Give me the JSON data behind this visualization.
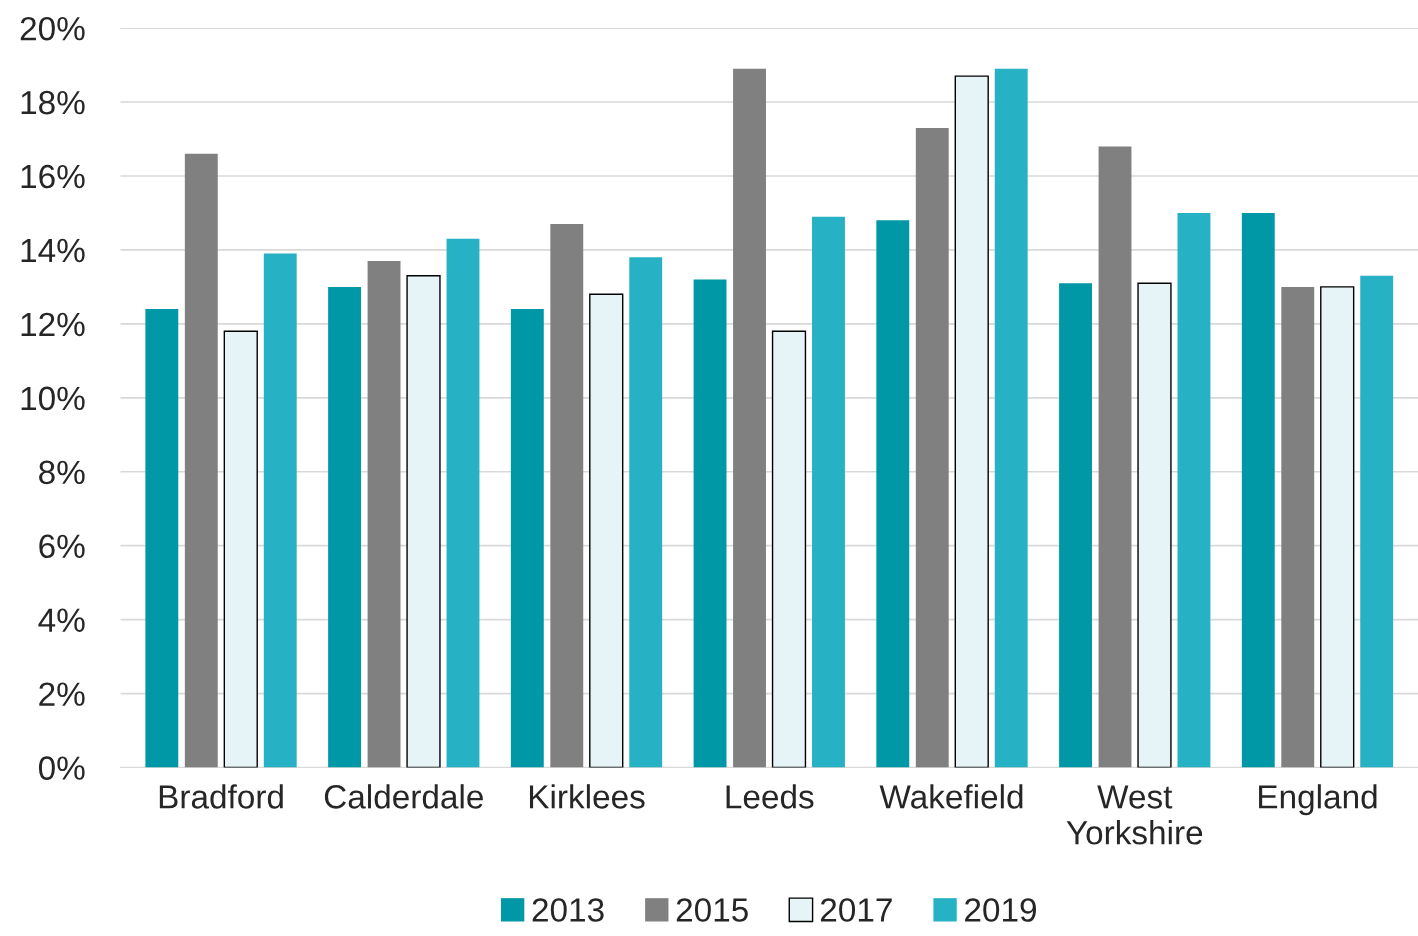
{
  "chart_data": {
    "type": "bar",
    "categories": [
      "Bradford",
      "Calderdale",
      "Kirklees",
      "Leeds",
      "Wakefield",
      "West\nYorkshire",
      "England"
    ],
    "series": [
      {
        "name": "2013",
        "color": "#0097a7",
        "values": [
          12.4,
          13.0,
          12.4,
          13.2,
          14.8,
          13.1,
          15.0
        ]
      },
      {
        "name": "2015",
        "color": "#808080",
        "values": [
          16.6,
          13.7,
          14.7,
          18.9,
          17.3,
          16.8,
          13.0
        ]
      },
      {
        "name": "2017",
        "color": "#e6f4f8",
        "values": [
          11.8,
          13.3,
          12.8,
          11.8,
          18.7,
          13.1,
          13.0
        ]
      },
      {
        "name": "2019",
        "color": "#26b1c4",
        "values": [
          13.9,
          14.3,
          13.8,
          14.9,
          18.9,
          15.0,
          13.3
        ]
      }
    ],
    "ylim": [
      0,
      20
    ],
    "yticks": [
      {
        "value": 0,
        "label": "0%"
      },
      {
        "value": 2,
        "label": "2%"
      },
      {
        "value": 4,
        "label": "4%"
      },
      {
        "value": 6,
        "label": "6%"
      },
      {
        "value": 8,
        "label": "8%"
      },
      {
        "value": 10,
        "label": "10%"
      },
      {
        "value": 12,
        "label": "12%"
      },
      {
        "value": 14,
        "label": "14%"
      },
      {
        "value": 16,
        "label": "16%"
      },
      {
        "value": 18,
        "label": "18%"
      },
      {
        "value": 20,
        "label": "20%"
      }
    ],
    "grid": "y",
    "legend": "bottom"
  }
}
